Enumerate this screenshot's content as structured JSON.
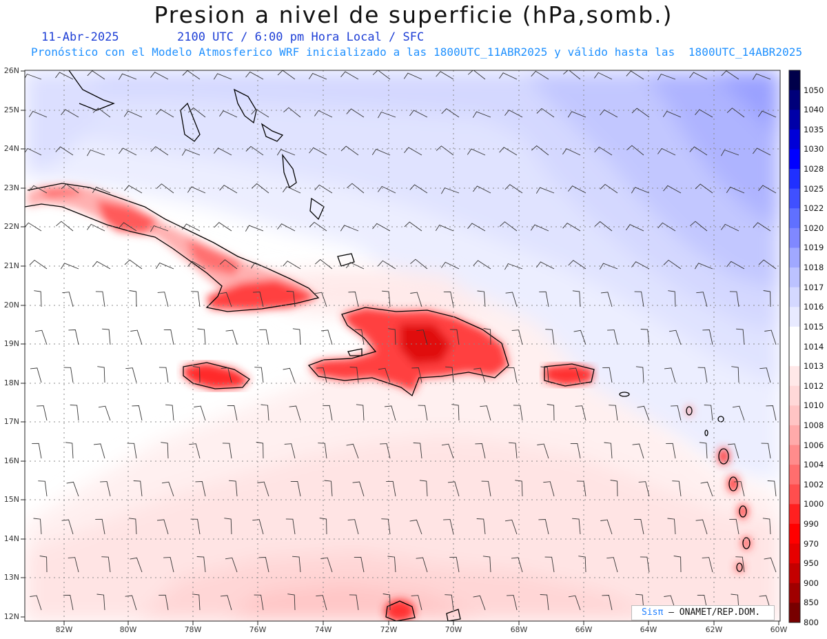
{
  "title": "Presion a nivel de superficie (hPa,somb.)",
  "subtitle": {
    "date": "11-Abr-2025",
    "time": "2100 UTC / 6:00 pm Hora Local / SFC",
    "model": "Pronóstico con el Modelo Atmosferico WRF inicializado a las 1800UTC_11ABR2025 y válido hasta las  1800UTC_14ABR2025"
  },
  "axes": {
    "lat_labels": [
      "26N",
      "25N",
      "24N",
      "23N",
      "22N",
      "21N",
      "20N",
      "19N",
      "18N",
      "17N",
      "16N",
      "15N",
      "14N",
      "13N",
      "12N"
    ],
    "lon_labels": [
      "82W",
      "80W",
      "78W",
      "76W",
      "74W",
      "72W",
      "70W",
      "68W",
      "66W",
      "64W",
      "62W",
      "60W"
    ],
    "lat_range": [
      12,
      26
    ],
    "lon_range": [
      -83.2,
      -60
    ],
    "grid": "dotted"
  },
  "colorbar": {
    "labels": [
      "1050",
      "1040",
      "1035",
      "1030",
      "1028",
      "1025",
      "1022",
      "1020",
      "1019",
      "1018",
      "1017",
      "1016",
      "1015",
      "1014",
      "1013",
      "1012",
      "1010",
      "1008",
      "1006",
      "1004",
      "1002",
      "1000",
      "990",
      "970",
      "950",
      "900",
      "850",
      "800"
    ],
    "colors": [
      "#00004a",
      "#00007a",
      "#0000a8",
      "#0000d8",
      "#0000ff",
      "#2030ff",
      "#4050ff",
      "#6070ff",
      "#8088ff",
      "#a0a8ff",
      "#bcc2ff",
      "#d4d8ff",
      "#e8eaff",
      "#ffffff",
      "#ffffff",
      "#ffe8e8",
      "#ffd8d8",
      "#ffc4c4",
      "#ffaaaa",
      "#ff8c8c",
      "#ff6e6e",
      "#ff4e4e",
      "#ff2020",
      "#ff0000",
      "#e60000",
      "#c40000",
      "#a00000",
      "#780000"
    ]
  },
  "credit": {
    "brand": "Sisπ",
    "text": "ONAMET/REP.DOM."
  },
  "islands": [
    "Cuba",
    "Jamaica",
    "Hispaniola",
    "Puerto Rico",
    "Bahamas",
    "Lesser Antilles"
  ]
}
